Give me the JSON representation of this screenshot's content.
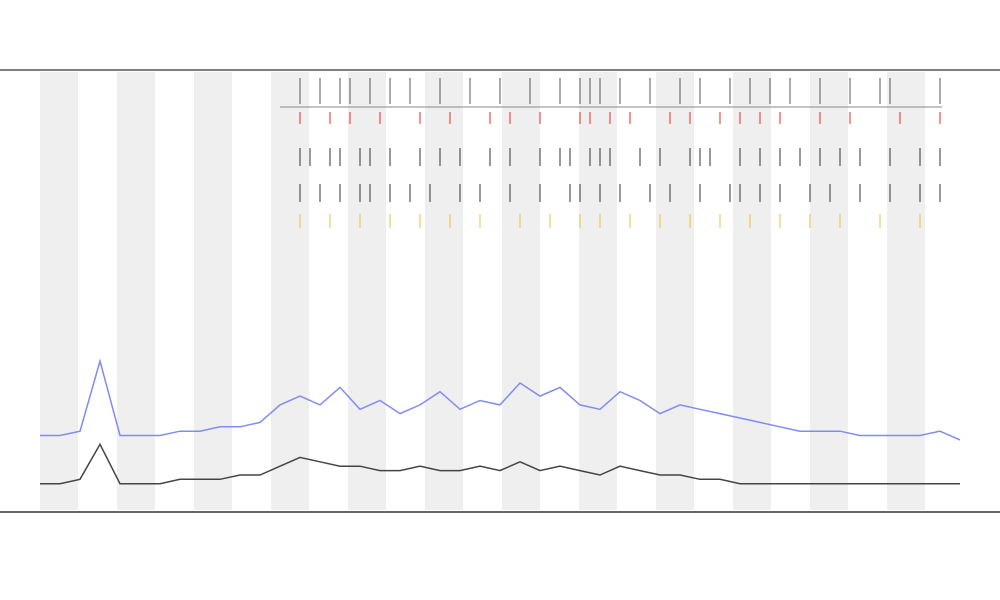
{
  "chart_data": {
    "type": "line",
    "x": [
      0,
      2,
      4,
      6,
      8,
      10,
      12,
      14,
      16,
      18,
      20,
      22,
      24,
      26,
      28,
      30,
      32,
      34,
      36,
      38,
      40,
      42,
      44,
      46,
      48,
      50,
      52,
      54,
      56,
      58,
      60,
      62,
      64,
      66,
      68,
      70,
      72,
      74,
      76,
      78,
      80,
      82,
      84,
      86,
      88,
      90,
      92
    ],
    "series": [
      {
        "color": "#7f8cf0",
        "values": [
          17,
          17,
          18,
          34,
          17,
          17,
          17,
          18,
          18,
          19,
          19,
          20,
          24,
          26,
          24,
          28,
          23,
          25,
          22,
          24,
          27,
          23,
          25,
          24,
          29,
          26,
          28,
          24,
          23,
          27,
          25,
          22,
          24,
          23,
          22,
          21,
          20,
          19,
          18,
          18,
          18,
          17,
          17,
          17,
          17,
          18,
          16
        ]
      },
      {
        "color": "#444444",
        "values": [
          6,
          6,
          7,
          15,
          6,
          6,
          6,
          7,
          7,
          7,
          8,
          8,
          10,
          12,
          11,
          10,
          10,
          9,
          9,
          10,
          9,
          9,
          10,
          9,
          11,
          9,
          10,
          9,
          8,
          10,
          9,
          8,
          8,
          7,
          7,
          6,
          6,
          6,
          6,
          6,
          6,
          6,
          6,
          6,
          6,
          6,
          6
        ]
      }
    ],
    "events": [
      {
        "color": "#555555",
        "x": [
          26,
          28,
          30,
          31,
          33,
          35,
          37,
          40,
          43,
          46,
          49,
          52,
          54,
          55,
          56,
          58,
          61,
          64,
          66,
          69,
          71,
          73,
          75,
          78,
          81,
          84,
          85,
          90
        ]
      },
      {
        "color": "#e03020",
        "x": [
          26,
          29,
          31,
          34,
          38,
          41,
          45,
          47,
          50,
          54,
          55,
          57,
          59,
          63,
          65,
          68,
          70,
          72,
          74,
          78,
          81,
          86,
          90
        ]
      },
      {
        "color": "#333333",
        "x": [
          26,
          27,
          29,
          30,
          32,
          33,
          35,
          38,
          40,
          42,
          45,
          47,
          50,
          52,
          53,
          55,
          56,
          57,
          60,
          62,
          65,
          66,
          67,
          70,
          72,
          74,
          76,
          78,
          80,
          82,
          85,
          88,
          90
        ]
      },
      {
        "color": "#333333",
        "x": [
          26,
          28,
          30,
          32,
          33,
          35,
          37,
          39,
          42,
          44,
          47,
          50,
          53,
          54,
          56,
          58,
          61,
          63,
          66,
          69,
          70,
          72,
          74,
          77,
          79,
          82,
          85,
          88,
          90
        ]
      },
      {
        "color": "#e8c030",
        "x": [
          26,
          29,
          32,
          35,
          38,
          41,
          44,
          48,
          51,
          54,
          56,
          59,
          62,
          65,
          68,
          71,
          74,
          77,
          80,
          84,
          88
        ]
      }
    ],
    "xlim": [
      0,
      92
    ],
    "ylim": [
      0,
      100
    ]
  }
}
